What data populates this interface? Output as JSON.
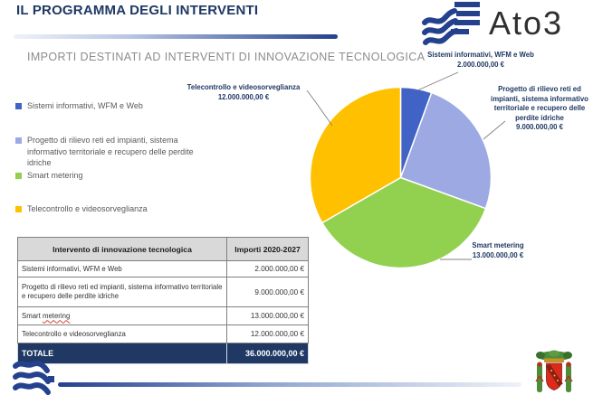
{
  "header": {
    "title": "IL PROGRAMMA DEGLI INTERVENTI",
    "logo_text": "Ato3"
  },
  "section_title": "IMPORTI DESTINATI AD INTERVENTI DI INNOVAZIONE TECNOLOGICA",
  "chart_data": {
    "type": "pie",
    "title": "IMPORTI DESTINATI AD INTERVENTI DI INNOVAZIONE TECNOLOGICA",
    "categories": [
      "Sistemi informativi, WFM e Web",
      "Progetto di rilievo reti ed impianti, sistema informativo territoriale e recupero delle perdite idriche",
      "Smart metering",
      "Telecontrollo e videosorveglianza"
    ],
    "values": [
      2000000,
      9000000,
      13000000,
      12000000
    ],
    "value_labels": [
      "2.000.000,00 €",
      "9.000.000,00 €",
      "13.000.000,00 €",
      "12.000.000,00 €"
    ],
    "colors": [
      "#4063C5",
      "#9DA9E2",
      "#92D050",
      "#FFC000"
    ],
    "total": 36000000,
    "start_angle_deg": 0,
    "direction": "clockwise",
    "legend_position": "left",
    "data_labels": "category-and-value"
  },
  "table": {
    "headers": [
      "Intervento di innovazione tecnologica",
      "Importi 2020-2027"
    ],
    "rows": [
      {
        "name": "Sistemi informativi, WFM e Web",
        "amount": "2.000.000,00 €"
      },
      {
        "name": "Progetto di rilievo reti ed impianti, sistema informativo territoriale e recupero delle perdite idriche",
        "amount": "9.000.000,00 €"
      },
      {
        "name_prefix": "Smart ",
        "name_underlined": "metering",
        "amount": "13.000.000,00 €"
      },
      {
        "name": "Telecontrollo e videosorveglianza",
        "amount": "12.000.000,00 €"
      }
    ],
    "total_row": {
      "label": "TOTALE",
      "amount": "36.000.000,00 €"
    }
  },
  "colors": {
    "title_navy": "#1F3864",
    "accent_navy": "#24418E",
    "subtitle_gray": "#8C8C8C",
    "table_header_bg": "#D9D9D9",
    "total_row_bg": "#1F3864",
    "spellcheck_red": "#d84338"
  }
}
